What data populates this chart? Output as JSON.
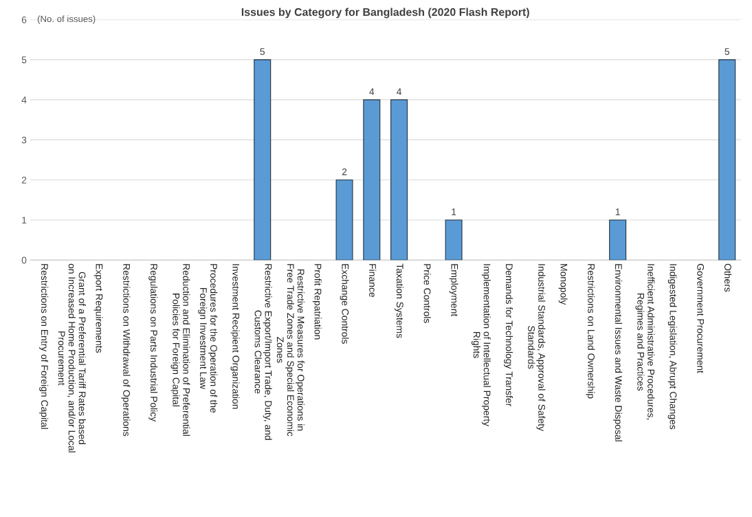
{
  "chart_data": {
    "type": "bar",
    "title": "Issues by Category for Bangladesh (2020 Flash Report)",
    "ylabel": "(No. of issues)",
    "categories": [
      "Restrictions on Entry of Foreign Capital",
      "Grant of a Preferential Tariff Rates based on Increased Home Production, and/or Local Procurement",
      "Export Requirements",
      "Restrictions on Withdrawal of Operations",
      "Regulations on Parts Industrial Policy",
      "Reduction and Elimination of Preferential Policies for Foreign Capital",
      "Procedures for the Operation of the Foreign Investment Law",
      "Investment Recipient Organization",
      "Restrictive Export/Import Trade, Duty, and Customs Clearance",
      "Restrictive Measures for Operations in Free Trade Zones and Special Economic Zones",
      "Profit Repatriation",
      "Exchange Controls",
      "Finance",
      "Taxation Systems",
      "Price Controls",
      "Employment",
      "Implementation of Intellectual Property Rights",
      "Demands for Technology Transfer",
      "Industrial Standards, Approval of Safety Standards",
      "Monopoly",
      "Restrictions on Land Ownership",
      "Environmental Issues and Waste Disposal",
      "Inefficient Administrative Procedures, Regimes and Practices",
      "Indigested Legislation, Abrupt Changes",
      "Government Procurement",
      "Others"
    ],
    "values": [
      0,
      0,
      0,
      0,
      0,
      0,
      0,
      0,
      5,
      0,
      0,
      2,
      4,
      4,
      0,
      1,
      0,
      0,
      0,
      0,
      0,
      1,
      0,
      0,
      0,
      5
    ],
    "value_labels": [
      null,
      null,
      null,
      null,
      null,
      null,
      null,
      null,
      "5",
      null,
      null,
      "2",
      "4",
      "4",
      null,
      "1",
      null,
      null,
      null,
      null,
      null,
      "1",
      null,
      null,
      null,
      "5"
    ],
    "color": "#5b9bd5",
    "ylim": [
      0,
      6
    ],
    "yticks": [
      0,
      1,
      2,
      3,
      4,
      5,
      6
    ],
    "grid": "y",
    "legend": false
  }
}
